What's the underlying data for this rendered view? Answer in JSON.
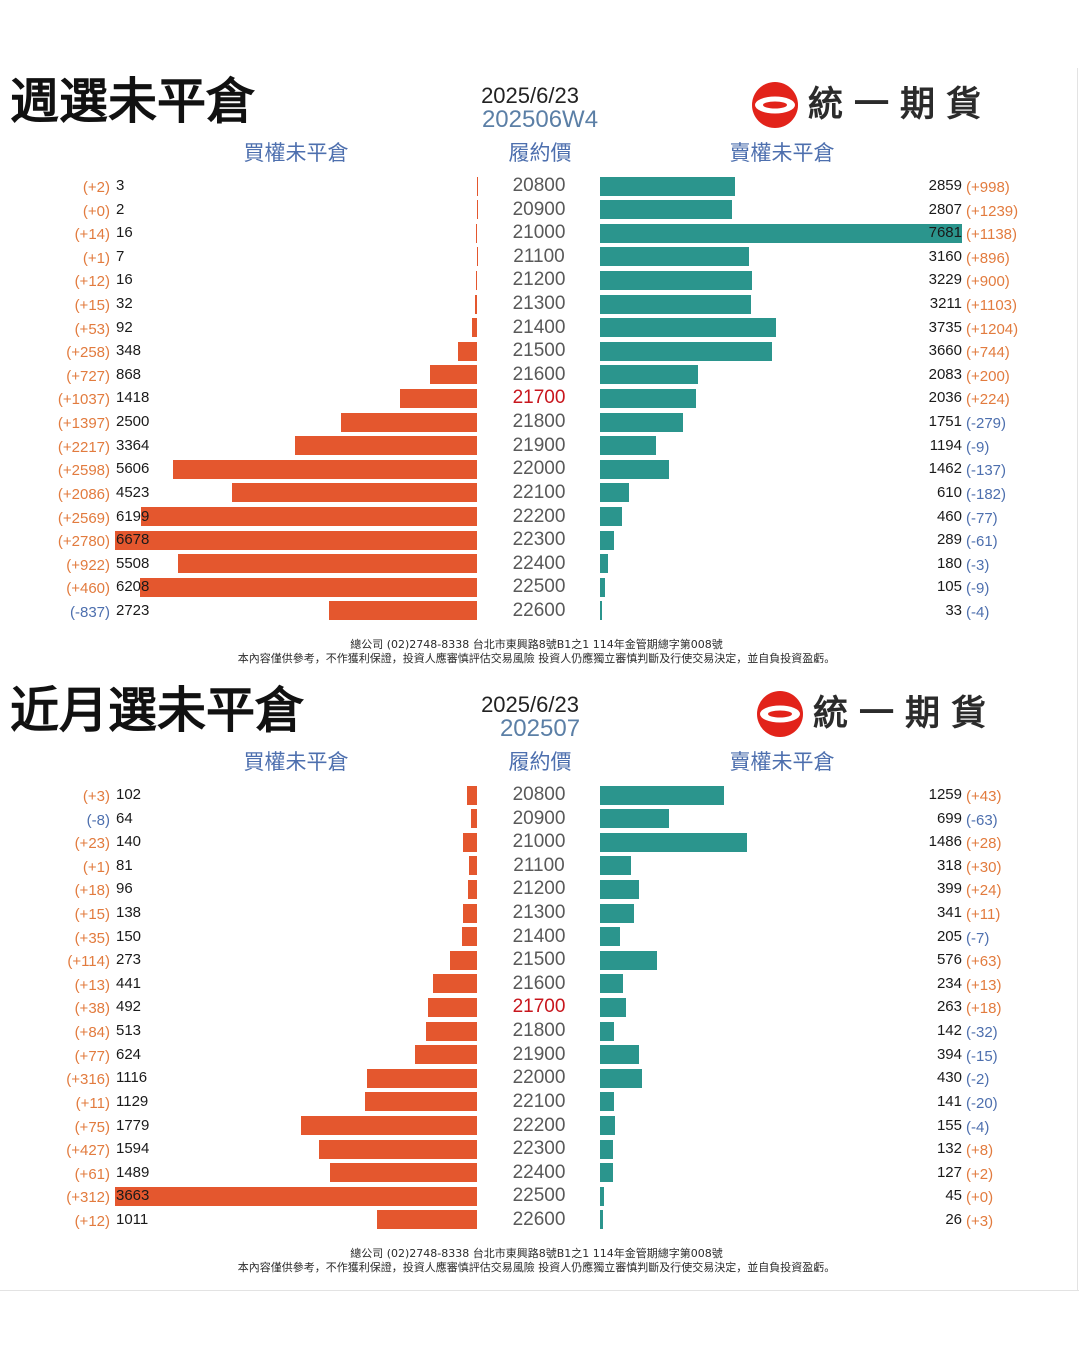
{
  "brand": {
    "name": "統一期貨",
    "logo_icon": "uni-president-logo-icon"
  },
  "colors": {
    "call_bar": "#e4572e",
    "put_bar": "#2b958d",
    "positive_change": "#e27b3e",
    "negative_change": "#4d6fae",
    "atm_strike": "#c8161d",
    "strike": "#595959",
    "header": "#4d6fae",
    "contract": "#5b7fa6",
    "logo_red": "#e2231a"
  },
  "chart_data": [
    {
      "type": "bar",
      "title": "週選未平倉",
      "date": "2025/6/23",
      "contract": "202506W4",
      "headers": {
        "call": "買權未平倉",
        "strike": "履約價",
        "put": "賣權未平倉"
      },
      "call_xlim": [
        0,
        6678
      ],
      "put_xlim": [
        0,
        7681
      ],
      "rows": [
        {
          "strike": 20800,
          "call": 3,
          "call_change": "(+2)",
          "put": 2859,
          "put_change": "(+998)"
        },
        {
          "strike": 20900,
          "call": 2,
          "call_change": "(+0)",
          "put": 2807,
          "put_change": "(+1239)"
        },
        {
          "strike": 21000,
          "call": 16,
          "call_change": "(+14)",
          "put": 7681,
          "put_change": "(+1138)"
        },
        {
          "strike": 21100,
          "call": 7,
          "call_change": "(+1)",
          "put": 3160,
          "put_change": "(+896)"
        },
        {
          "strike": 21200,
          "call": 16,
          "call_change": "(+12)",
          "put": 3229,
          "put_change": "(+900)"
        },
        {
          "strike": 21300,
          "call": 32,
          "call_change": "(+15)",
          "put": 3211,
          "put_change": "(+1103)"
        },
        {
          "strike": 21400,
          "call": 92,
          "call_change": "(+53)",
          "put": 3735,
          "put_change": "(+1204)"
        },
        {
          "strike": 21500,
          "call": 348,
          "call_change": "(+258)",
          "put": 3660,
          "put_change": "(+744)"
        },
        {
          "strike": 21600,
          "call": 868,
          "call_change": "(+727)",
          "put": 2083,
          "put_change": "(+200)"
        },
        {
          "strike": 21700,
          "call": 1418,
          "call_change": "(+1037)",
          "put": 2036,
          "put_change": "(+224)",
          "highlight": true
        },
        {
          "strike": 21800,
          "call": 2500,
          "call_change": "(+1397)",
          "put": 1751,
          "put_change": "(-279)"
        },
        {
          "strike": 21900,
          "call": 3364,
          "call_change": "(+2217)",
          "put": 1194,
          "put_change": "(-9)"
        },
        {
          "strike": 22000,
          "call": 5606,
          "call_change": "(+2598)",
          "put": 1462,
          "put_change": "(-137)"
        },
        {
          "strike": 22100,
          "call": 4523,
          "call_change": "(+2086)",
          "put": 610,
          "put_change": "(-182)"
        },
        {
          "strike": 22200,
          "call": 6199,
          "call_change": "(+2569)",
          "put": 460,
          "put_change": "(-77)"
        },
        {
          "strike": 22300,
          "call": 6678,
          "call_change": "(+2780)",
          "put": 289,
          "put_change": "(-61)"
        },
        {
          "strike": 22400,
          "call": 5508,
          "call_change": "(+922)",
          "put": 180,
          "put_change": "(-3)"
        },
        {
          "strike": 22500,
          "call": 6208,
          "call_change": "(+460)",
          "put": 105,
          "put_change": "(-9)"
        },
        {
          "strike": 22600,
          "call": 2723,
          "call_change": "(-837)",
          "put": 33,
          "put_change": "(-4)"
        }
      ]
    },
    {
      "type": "bar",
      "title": "近月選未平倉",
      "date": "2025/6/23",
      "contract": "202507",
      "headers": {
        "call": "買權未平倉",
        "strike": "履約價",
        "put": "賣權未平倉"
      },
      "call_xlim": [
        0,
        3663
      ],
      "put_xlim": [
        0,
        3663
      ],
      "rows": [
        {
          "strike": 20800,
          "call": 102,
          "call_change": "(+3)",
          "put": 1259,
          "put_change": "(+43)"
        },
        {
          "strike": 20900,
          "call": 64,
          "call_change": "(-8)",
          "put": 699,
          "put_change": "(-63)"
        },
        {
          "strike": 21000,
          "call": 140,
          "call_change": "(+23)",
          "put": 1486,
          "put_change": "(+28)"
        },
        {
          "strike": 21100,
          "call": 81,
          "call_change": "(+1)",
          "put": 318,
          "put_change": "(+30)"
        },
        {
          "strike": 21200,
          "call": 96,
          "call_change": "(+18)",
          "put": 399,
          "put_change": "(+24)"
        },
        {
          "strike": 21300,
          "call": 138,
          "call_change": "(+15)",
          "put": 341,
          "put_change": "(+11)"
        },
        {
          "strike": 21400,
          "call": 150,
          "call_change": "(+35)",
          "put": 205,
          "put_change": "(-7)"
        },
        {
          "strike": 21500,
          "call": 273,
          "call_change": "(+114)",
          "put": 576,
          "put_change": "(+63)"
        },
        {
          "strike": 21600,
          "call": 441,
          "call_change": "(+13)",
          "put": 234,
          "put_change": "(+13)"
        },
        {
          "strike": 21700,
          "call": 492,
          "call_change": "(+38)",
          "put": 263,
          "put_change": "(+18)",
          "highlight": true
        },
        {
          "strike": 21800,
          "call": 513,
          "call_change": "(+84)",
          "put": 142,
          "put_change": "(-32)"
        },
        {
          "strike": 21900,
          "call": 624,
          "call_change": "(+77)",
          "put": 394,
          "put_change": "(-15)"
        },
        {
          "strike": 22000,
          "call": 1116,
          "call_change": "(+316)",
          "put": 430,
          "put_change": "(-2)"
        },
        {
          "strike": 22100,
          "call": 1129,
          "call_change": "(+11)",
          "put": 141,
          "put_change": "(-20)"
        },
        {
          "strike": 22200,
          "call": 1779,
          "call_change": "(+75)",
          "put": 155,
          "put_change": "(-4)"
        },
        {
          "strike": 22300,
          "call": 1594,
          "call_change": "(+427)",
          "put": 132,
          "put_change": "(+8)"
        },
        {
          "strike": 22400,
          "call": 1489,
          "call_change": "(+61)",
          "put": 127,
          "put_change": "(+2)"
        },
        {
          "strike": 22500,
          "call": 3663,
          "call_change": "(+312)",
          "put": 45,
          "put_change": "(+0)"
        },
        {
          "strike": 22600,
          "call": 1011,
          "call_change": "(+12)",
          "put": 26,
          "put_change": "(+3)"
        }
      ]
    }
  ],
  "footer": {
    "line1": "總公司 (02)2748-8338 台北市東興路8號B1之1 114年金管期總字第008號",
    "line2": "本內容僅供參考，不作獲利保證，投資人應審慎評估交易風險 投資人仍應獨立審慎判斷及行使交易決定，並自負投資盈虧。"
  }
}
